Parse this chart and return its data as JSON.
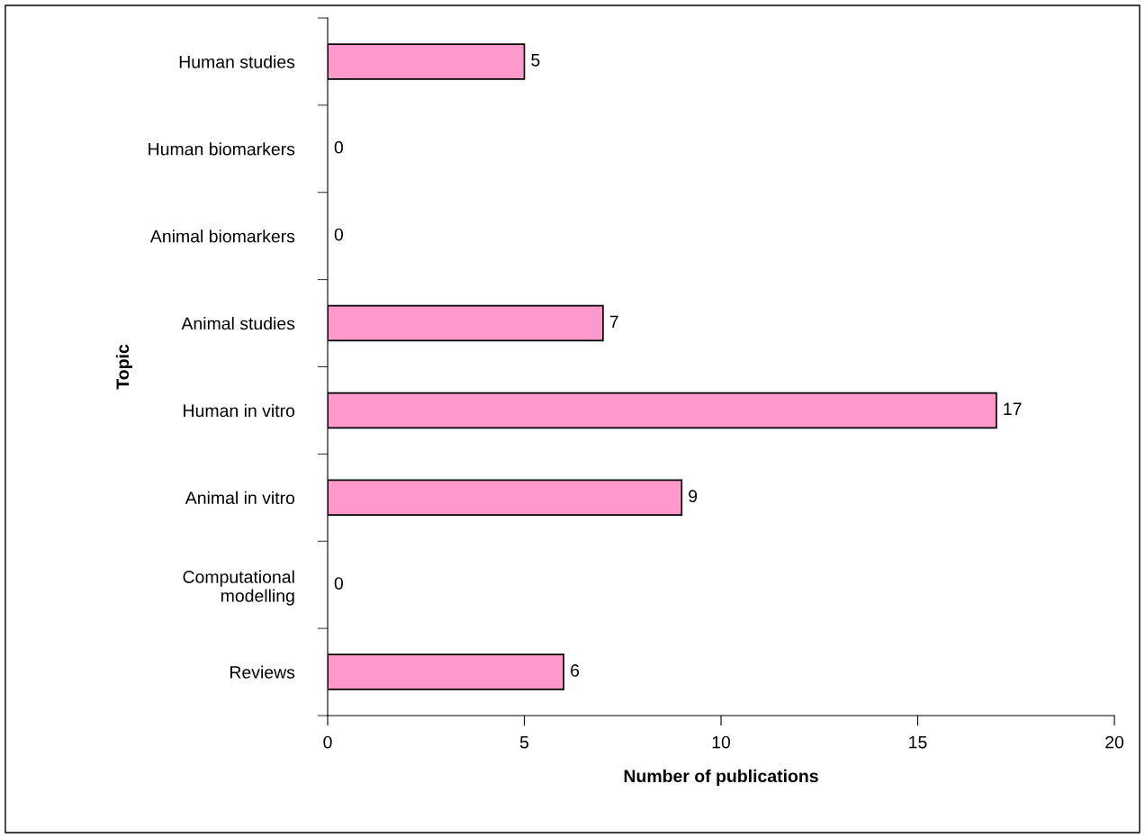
{
  "chart_data": {
    "type": "bar",
    "orientation": "horizontal",
    "categories": [
      "Human studies",
      "Human biomarkers",
      "Animal biomarkers",
      "Animal studies",
      "Human in vitro",
      "Animal in vitro",
      "Computational modelling",
      "Reviews"
    ],
    "values": [
      5,
      0,
      0,
      7,
      17,
      9,
      0,
      6
    ],
    "color": "#ff99cc",
    "xlabel": "Number of publications",
    "ylabel": "Topic",
    "xlim": [
      0,
      20
    ],
    "xticks": [
      0,
      5,
      10,
      15,
      20
    ],
    "data_labels": true,
    "grid": false
  }
}
